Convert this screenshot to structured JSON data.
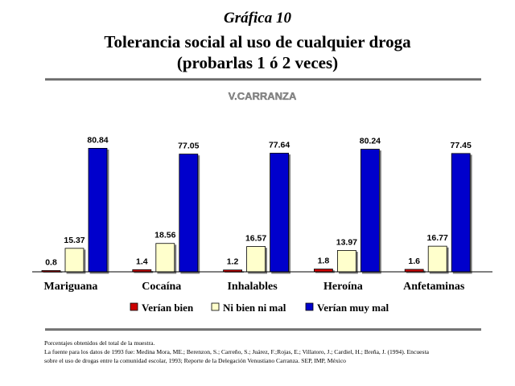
{
  "header": {
    "kicker": "Gráfica 10",
    "title_line1": "Tolerancia social al uso de cualquier droga",
    "title_line2": "(probarlas 1 ó 2 veces)"
  },
  "chart_data": {
    "type": "bar",
    "subtitle": "V.CARRANZA",
    "categories": [
      "Mariguana",
      "Cocaína",
      "Inhalables",
      "Heroína",
      "Anfetaminas"
    ],
    "series": [
      {
        "name": "Verían bien",
        "color": "#cc0000",
        "values": [
          0.8,
          1.4,
          1.2,
          1.8,
          1.6
        ]
      },
      {
        "name": "Ni bien ni mal",
        "color": "#ffffcc",
        "values": [
          15.37,
          18.56,
          16.57,
          13.97,
          16.77
        ]
      },
      {
        "name": "Verían muy mal",
        "color": "#0000cc",
        "values": [
          80.84,
          77.05,
          77.64,
          80.24,
          77.45
        ]
      }
    ],
    "value_labels": [
      [
        "0.8",
        "1.4",
        "1.2",
        "1.8",
        "1.6"
      ],
      [
        "15.37",
        "18.56",
        "16.57",
        "13.97",
        "16.77"
      ],
      [
        "80.84",
        "77.05",
        "77.64",
        "80.24",
        "77.45"
      ]
    ],
    "ylim": [
      0,
      100
    ],
    "grid": false,
    "legend_position": "bottom"
  },
  "footnotes": {
    "line1": "Porcentajes obtenidos del total de la muestra.",
    "line2": "La fuente para los datos de 1993 fue: Medina Mora, ME.; Berenzon, S.; Carreño, S.; Juárez, F.;Rojas, E.; Villatoro, J.; Cardiel, H.; Breña, J. (1994). Encuesta",
    "line3": "sobre el uso de drogas entre la comunidad escolar, 1993; Reporte de la Delegación Venustiano Carranza. SEP, IMP, México"
  }
}
